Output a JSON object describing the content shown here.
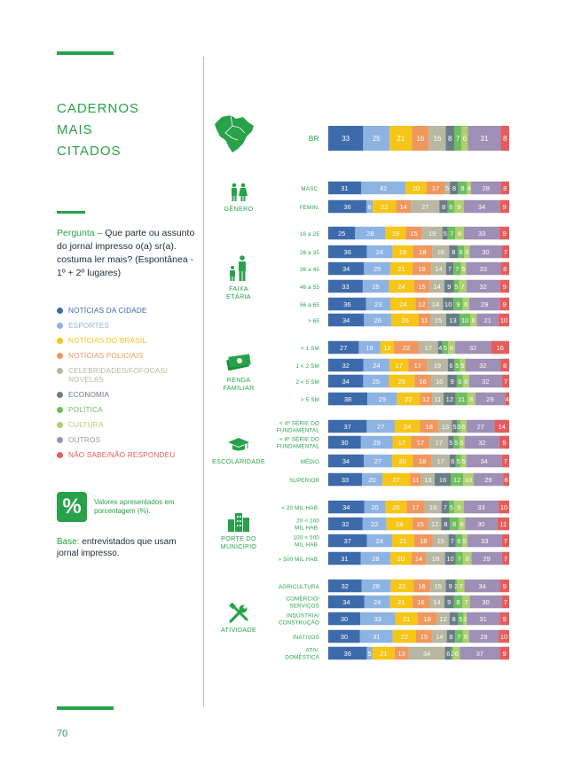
{
  "page": {
    "title_lines": [
      "CADERNOS",
      "MAIS",
      "CITADOS"
    ],
    "question_label": "Pergunta –",
    "question_text": "Que parte ou assunto do jornal impresso o(a) sr(a). costuma ler mais? (Espontânea - 1º + 2º lugares)",
    "percent_symbol": "%",
    "percent_note": "Valores apresentados em porcentagem (%).",
    "base_label": "Base:",
    "base_text": "entrevistados que usam jornal impresso.",
    "page_number": "70"
  },
  "legend": [
    {
      "label": "NOTÍCIAS DA CIDADE",
      "color": "#3d6aaa"
    },
    {
      "label": "ESPORTES",
      "color": "#8db3e2"
    },
    {
      "label": "NOTÍCIAS DO BRASIL",
      "color": "#f5c518"
    },
    {
      "label": "NOTÍCIAS POLICIAIS",
      "color": "#f0975e"
    },
    {
      "label": "CELEBRIDADES/FOFOCAS/ NOVELAS",
      "color": "#b7b7a2"
    },
    {
      "label": "ECONOMIA",
      "color": "#6a7d87"
    },
    {
      "label": "POLÍTICA",
      "color": "#6cbf5e"
    },
    {
      "label": "CULTURA",
      "color": "#b0cf6f"
    },
    {
      "label": "OUTROS",
      "color": "#9e8fb6"
    },
    {
      "label": "NÃO SABE/NÃO RESPONDEU",
      "color": "#e65c5c"
    }
  ],
  "groups": [
    {
      "label": "GÊNERO",
      "icon": "gender-icon"
    },
    {
      "label": "FAIXA ETÁRIA",
      "icon": "age-icon"
    },
    {
      "label": "RENDA FAMILIAR",
      "icon": "money-icon"
    },
    {
      "label": "ESCOLARIDADE",
      "icon": "graduation-cap-icon"
    },
    {
      "label": "PORTE DO MUNICÍPIO",
      "icon": "city-icon"
    },
    {
      "label": "ATIVIDADE",
      "icon": "tools-icon"
    }
  ],
  "chart_data": {
    "type": "bar",
    "orientation": "horizontal-stacked",
    "series": [
      "NOTÍCIAS DA CIDADE",
      "ESPORTES",
      "NOTÍCIAS DO BRASIL",
      "NOTÍCIAS POLICIAIS",
      "CELEBRIDADES/FOFOCAS/ NOVELAS",
      "ECONOMIA",
      "POLÍTICA",
      "CULTURA",
      "OUTROS",
      "NÃO SABE/NÃO RESPONDEU"
    ],
    "rows": [
      {
        "label": "BR",
        "values": [
          33,
          25,
          21,
          16,
          16,
          8,
          7,
          6,
          31,
          8
        ]
      },
      {
        "label": "MASC.",
        "values": [
          31,
          42,
          20,
          17,
          5,
          8,
          8,
          4,
          28,
          8
        ]
      },
      {
        "label": "FEMIN.",
        "values": [
          36,
          6,
          22,
          14,
          27,
          8,
          6,
          9,
          34,
          9
        ]
      },
      {
        "label": "16 a 25",
        "values": [
          25,
          28,
          19,
          15,
          19,
          5,
          7,
          8,
          33,
          9
        ]
      },
      {
        "label": "26 a 35",
        "values": [
          36,
          24,
          19,
          18,
          16,
          8,
          6,
          5,
          30,
          7
        ]
      },
      {
        "label": "36 a 45",
        "values": [
          34,
          25,
          21,
          18,
          14,
          7,
          7,
          5,
          33,
          8
        ]
      },
      {
        "label": "46 a 55",
        "values": [
          33,
          25,
          24,
          15,
          14,
          9,
          5,
          7,
          32,
          9
        ]
      },
      {
        "label": "56 a 65",
        "values": [
          36,
          23,
          24,
          12,
          14,
          10,
          9,
          6,
          29,
          9
        ]
      },
      {
        "label": "> 65",
        "values": [
          34,
          26,
          26,
          11,
          15,
          13,
          10,
          6,
          21,
          10
        ]
      },
      {
        "label": "< 1 SM",
        "values": [
          27,
          19,
          12,
          22,
          17,
          4,
          5,
          6,
          32,
          16
        ]
      },
      {
        "label": "1 < 2 SM",
        "values": [
          32,
          24,
          17,
          17,
          19,
          6,
          5,
          5,
          32,
          8
        ]
      },
      {
        "label": "2 < 5 SM",
        "values": [
          34,
          25,
          25,
          16,
          16,
          9,
          6,
          6,
          32,
          7
        ]
      },
      {
        "label": "> 5 SM",
        "values": [
          38,
          29,
          22,
          12,
          11,
          12,
          11,
          8,
          29,
          4
        ]
      },
      {
        "label": "< 4ª SÉRIE DO FUNDAMENTAL",
        "values": [
          37,
          27,
          24,
          18,
          13,
          5,
          3,
          6,
          27,
          14
        ]
      },
      {
        "label": "< 8ª SÉRIE DO FUNDAMENTAL",
        "values": [
          30,
          29,
          17,
          17,
          17,
          5,
          5,
          5,
          32,
          9
        ]
      },
      {
        "label": "MÉDIO",
        "values": [
          34,
          27,
          20,
          18,
          17,
          6,
          5,
          5,
          34,
          7
        ]
      },
      {
        "label": "SUPERIOR",
        "values": [
          33,
          20,
          27,
          11,
          13,
          16,
          12,
          10,
          29,
          6
        ]
      },
      {
        "label": "< 20 MIL HAB.",
        "values": [
          34,
          20,
          20,
          17,
          16,
          7,
          5,
          9,
          33,
          10
        ]
      },
      {
        "label": "20 < 100 MIL HAB.",
        "values": [
          32,
          22,
          24,
          15,
          12,
          8,
          8,
          6,
          30,
          11
        ]
      },
      {
        "label": "100 < 500 MIL HAB.",
        "values": [
          37,
          24,
          21,
          18,
          15,
          7,
          6,
          5,
          33,
          7
        ]
      },
      {
        "label": "> 500 MIL HAB.",
        "values": [
          31,
          28,
          20,
          14,
          18,
          10,
          7,
          8,
          29,
          7
        ]
      },
      {
        "label": "AGRICULTURA",
        "values": [
          32,
          28,
          22,
          16,
          15,
          9,
          2,
          7,
          34,
          9
        ]
      },
      {
        "label": "COMÉRCIO/ SERVIÇOS",
        "values": [
          34,
          24,
          21,
          16,
          14,
          9,
          8,
          7,
          30,
          7
        ]
      },
      {
        "label": "INDÚSTRIA/ CONSTRUÇÃO",
        "values": [
          30,
          33,
          21,
          18,
          12,
          8,
          5,
          3,
          31,
          9
        ]
      },
      {
        "label": "INATIVOS",
        "values": [
          30,
          31,
          22,
          15,
          14,
          8,
          7,
          6,
          28,
          10
        ]
      },
      {
        "label": "ATIV. DOMÉSTICA",
        "values": [
          36,
          5,
          21,
          13,
          34,
          6,
          2,
          6,
          37,
          9
        ]
      }
    ],
    "title": "",
    "xlabel": "",
    "ylabel": ""
  }
}
